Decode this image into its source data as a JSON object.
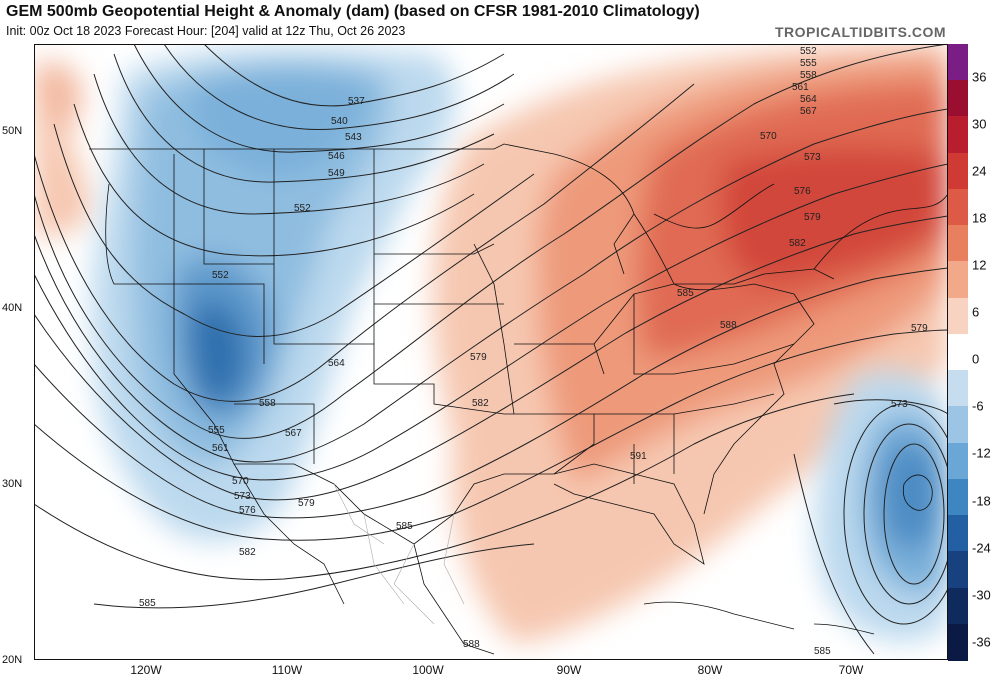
{
  "header": {
    "title": "GEM 500mb Geopotential Height & Anomaly (dam) (based on CFSR 1981-2010 Climatology)",
    "subtitle": "Init: 00z Oct 18 2023   Forecast Hour: [204]   valid at 12z Thu, Oct 26 2023",
    "brand": "TROPICALTIDBITS.COM"
  },
  "map": {
    "latitude_labels": [
      "50N",
      "40N",
      "30N",
      "20N"
    ],
    "longitude_labels": [
      "120W",
      "110W",
      "100W",
      "90W",
      "80W",
      "70W"
    ],
    "contour_labels": [
      "552",
      "555",
      "558",
      "561",
      "564",
      "567",
      "570",
      "573",
      "576",
      "579",
      "582",
      "585",
      "537",
      "540",
      "543",
      "546",
      "549",
      "552",
      "552",
      "558",
      "564",
      "567",
      "555",
      "561",
      "570",
      "573",
      "576",
      "579",
      "582",
      "585",
      "588",
      "591",
      "585",
      "579",
      "582",
      "588",
      "585",
      "579",
      "573",
      "585"
    ],
    "colors": {
      "cold_strong": "#2f6fae",
      "cold": "#6aa6d6",
      "cold_light": "#bcd9ee",
      "warm_light": "#f8d3c2",
      "warm": "#ef8f6e",
      "warm_strong": "#d74b3b",
      "land_outline": "#111111",
      "contour": "#222222"
    }
  },
  "colorbar": {
    "labels": [
      "36",
      "30",
      "24",
      "18",
      "12",
      "6",
      "0",
      "-6",
      "-12",
      "-18",
      "-24",
      "-30",
      "-36"
    ],
    "colors": [
      "#7a1d84",
      "#9a0f2f",
      "#b81e2e",
      "#cf3a34",
      "#dd5a46",
      "#e8805f",
      "#f1a98a",
      "#f8d3c2",
      "#ffffff",
      "#c6dcef",
      "#9cc4e4",
      "#6aa6d6",
      "#3d86c2",
      "#2260a3",
      "#18427f",
      "#0f2a5c",
      "#0a1a44"
    ]
  }
}
